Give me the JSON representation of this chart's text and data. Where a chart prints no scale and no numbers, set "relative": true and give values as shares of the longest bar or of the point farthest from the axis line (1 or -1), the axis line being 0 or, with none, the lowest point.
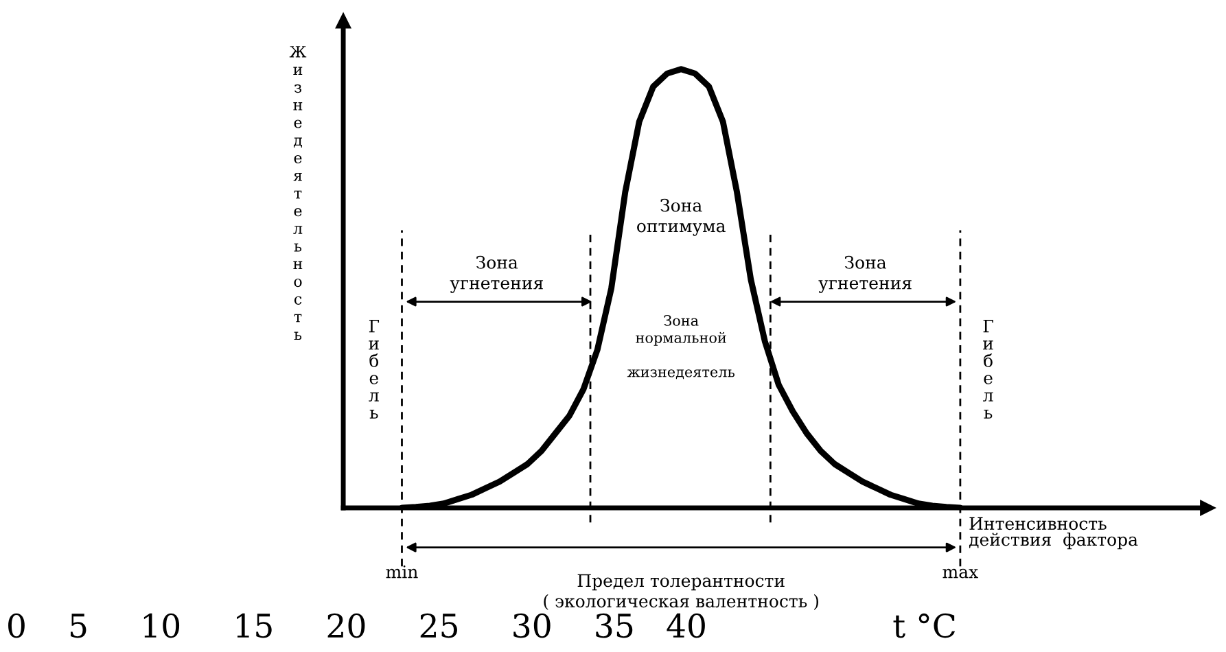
{
  "chart_data": {
    "type": "line",
    "relative": true,
    "ylabel": "Жизнедеятельность",
    "xlabel": "Интенсивность\nдействия  фактора",
    "categories": [
      null,
      null,
      null,
      null,
      null,
      null,
      null,
      null,
      null,
      null,
      null,
      null,
      null,
      null,
      null,
      null,
      null,
      null,
      null,
      null,
      null,
      null,
      null,
      null,
      null,
      null,
      null,
      null,
      null,
      null,
      null,
      null,
      null,
      null,
      null,
      null,
      null,
      null,
      null,
      null,
      null
    ],
    "series": [
      {
        "color": "#000000",
        "values": [
          0,
          0.002,
          0.005,
          0.01,
          0.02,
          0.03,
          0.045,
          0.06,
          0.08,
          0.1,
          0.13,
          0.17,
          0.21,
          0.27,
          0.36,
          0.5,
          0.72,
          0.88,
          0.96,
          0.99,
          1,
          0.99,
          0.96,
          0.88,
          0.72,
          0.52,
          0.38,
          0.28,
          0.22,
          0.17,
          0.13,
          0.1,
          0.08,
          0.06,
          0.045,
          0.03,
          0.02,
          0.01,
          0.005,
          0.002,
          0
        ]
      }
    ],
    "line_style": "solid",
    "annotations": [
      "min",
      "max",
      "Зона\nугнетения",
      "Зона\nоптимума",
      "Зона\nугнетения",
      "Зона\nнормальной\n\nжизнедеятель",
      "Гибель",
      "Гибель",
      "Предел толерантности\n( экологическая валентность )",
      "0    5     10     15     20     25     30    35   40                  t °C"
    ]
  }
}
